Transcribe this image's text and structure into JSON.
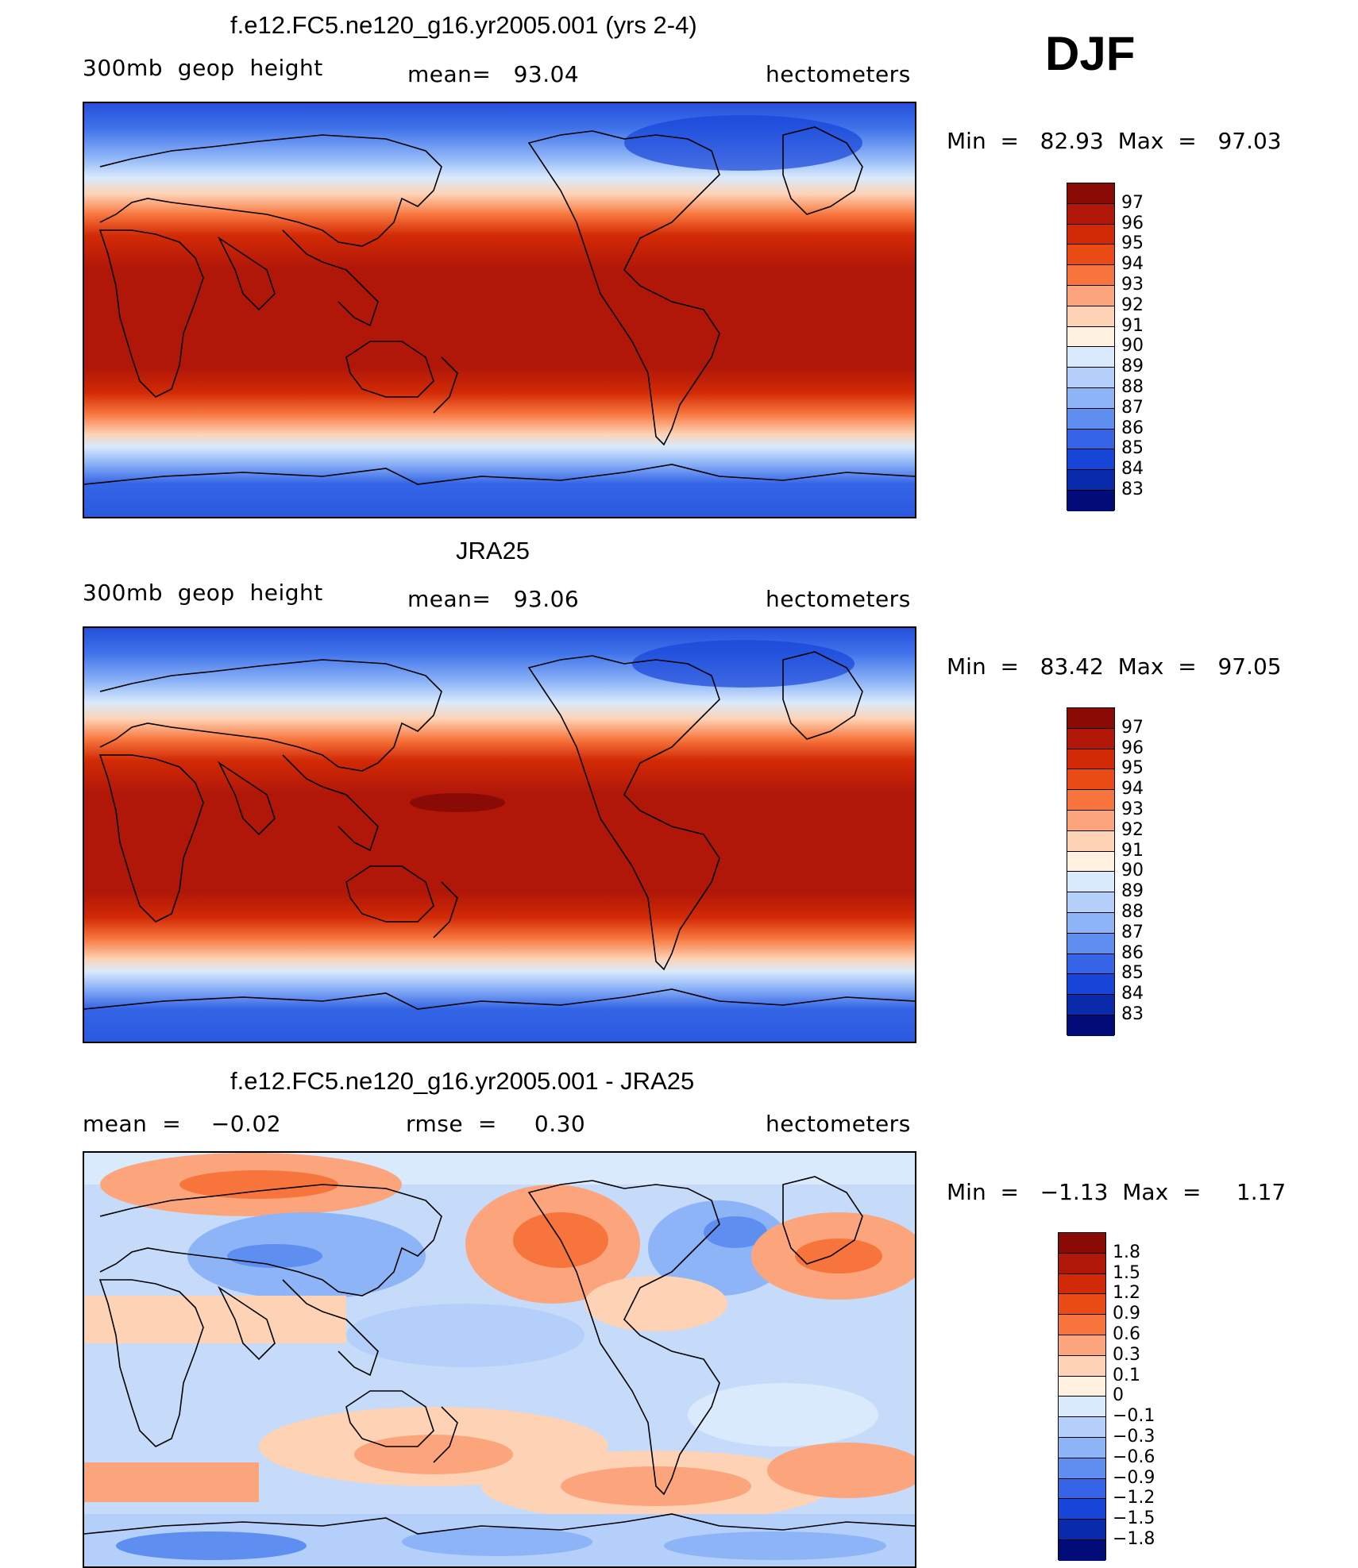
{
  "season": "DJF",
  "panels": [
    {
      "title": "f.e12.FC5.ne120_g16.yr2005.001 (yrs 2-4)",
      "left_label": "300mb  geop  height",
      "center_label": "mean=   93.04",
      "right_label": "hectometers",
      "minmax": "Min  =   82.93  Max  =   97.03",
      "kind": "abs",
      "colorbar": {
        "colors": [
          "#8a0a06",
          "#b11708",
          "#d22a06",
          "#ea4a13",
          "#f7753c",
          "#fca57c",
          "#fdd2b5",
          "#fff0e0",
          "#d9eafc",
          "#b4d0fa",
          "#8db4f7",
          "#5e8ff0",
          "#3565e6",
          "#1745d8",
          "#082aab",
          "#020c78"
        ],
        "labels": [
          "97",
          "96",
          "95",
          "94",
          "93",
          "92",
          "91",
          "90",
          "89",
          "88",
          "87",
          "86",
          "85",
          "84",
          "83"
        ]
      }
    },
    {
      "title": "JRA25",
      "left_label": "300mb  geop  height",
      "center_label": "mean=   93.06",
      "right_label": "hectometers",
      "minmax": "Min  =   83.42  Max  =   97.05",
      "kind": "abs",
      "colorbar": {
        "colors": [
          "#8a0a06",
          "#b11708",
          "#d22a06",
          "#ea4a13",
          "#f7753c",
          "#fca57c",
          "#fdd2b5",
          "#fff0e0",
          "#d9eafc",
          "#b4d0fa",
          "#8db4f7",
          "#5e8ff0",
          "#3565e6",
          "#1745d8",
          "#082aab",
          "#020c78"
        ],
        "labels": [
          "97",
          "96",
          "95",
          "94",
          "93",
          "92",
          "91",
          "90",
          "89",
          "88",
          "87",
          "86",
          "85",
          "84",
          "83"
        ]
      }
    },
    {
      "title": "f.e12.FC5.ne120_g16.yr2005.001 - JRA25",
      "left_label": "mean  =    −0.02",
      "center_label": "rmse  =     0.30",
      "right_label": "hectometers",
      "minmax": "Min  =   −1.13  Max  =     1.17",
      "kind": "diff",
      "colorbar": {
        "colors": [
          "#8a0a06",
          "#b11708",
          "#d22a06",
          "#ea4a13",
          "#f7753c",
          "#fca57c",
          "#fdd2b5",
          "#fff0e0",
          "#d9eafc",
          "#b4d0fa",
          "#8db4f7",
          "#5e8ff0",
          "#3565e6",
          "#1745d8",
          "#082aab",
          "#020c78"
        ],
        "labels": [
          "1.8",
          "1.5",
          "1.2",
          "0.9",
          "0.6",
          "0.3",
          "0.1",
          "0",
          "−0.1",
          "−0.3",
          "−0.6",
          "−0.9",
          "−1.2",
          "−1.5",
          "−1.8"
        ]
      }
    }
  ],
  "colors": {
    "land_outline": "#000000"
  }
}
